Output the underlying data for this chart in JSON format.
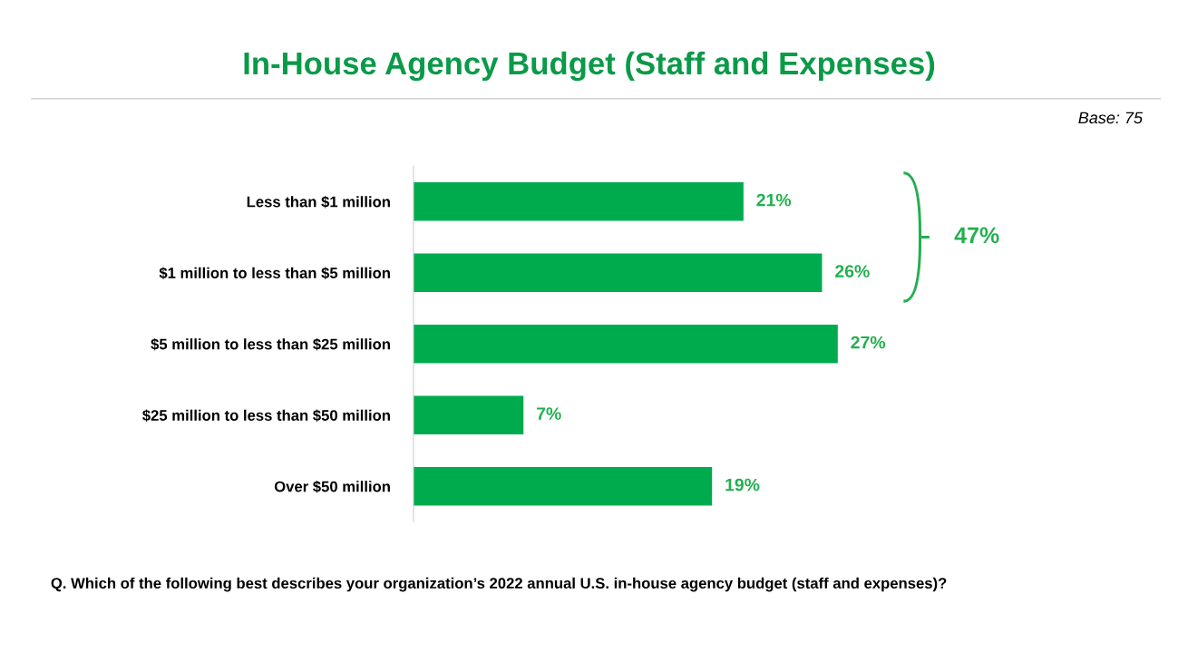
{
  "chart_data": {
    "type": "bar",
    "orientation": "horizontal",
    "title": "In-House Agency Budget (Staff and Expenses)",
    "categories": [
      "Less than $1 million",
      "$1 million to less than $5 million",
      "$5 million to less than $25 million",
      "$25 million to less than $50 million",
      "Over $50 million"
    ],
    "values": [
      21,
      26,
      27,
      7,
      19
    ],
    "color": "#00ab4e",
    "data_labels": true,
    "value_labels": [
      "21%",
      "26%",
      "27%",
      "7%",
      "19%"
    ],
    "annotations": [
      "Base: 75",
      "47%",
      "Q. Which of the following best describes your organization’s 2022 annual U.S. in-house agency budget (staff and expenses)?"
    ],
    "grid": false,
    "legend": false
  }
}
